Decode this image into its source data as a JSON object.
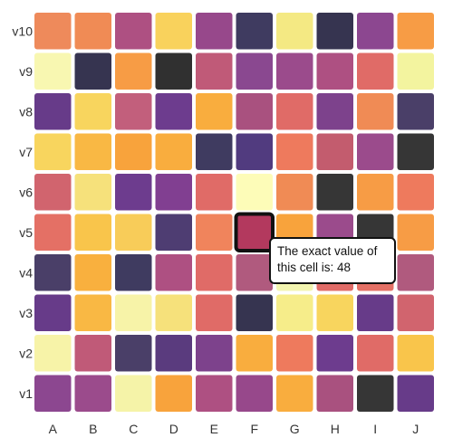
{
  "chart_data": {
    "type": "heatmap",
    "title": "",
    "xlabel": "",
    "ylabel": "",
    "columns": [
      "A",
      "B",
      "C",
      "D",
      "E",
      "F",
      "G",
      "H",
      "I",
      "J"
    ],
    "rows": [
      "v10",
      "v9",
      "v8",
      "v7",
      "v6",
      "v5",
      "v4",
      "v3",
      "v2",
      "v1"
    ],
    "cell_colors": [
      [
        "#ee8a5b",
        "#f08b55",
        "#ae5082",
        "#f9d25c",
        "#97488b",
        "#3f3b60",
        "#f4e983",
        "#363450",
        "#8c4790",
        "#f79c45"
      ],
      [
        "#f8f7b1",
        "#363450",
        "#f79c45",
        "#303030",
        "#c05a78",
        "#8a4890",
        "#9b4b8c",
        "#ae5082",
        "#e06b67",
        "#f3f49f"
      ],
      [
        "#673b89",
        "#f8d55e",
        "#c25f7c",
        "#6d3c8e",
        "#f9ad3e",
        "#a9517f",
        "#e06b67",
        "#7d428c",
        "#f08b55",
        "#4a3f68"
      ],
      [
        "#f8d55e",
        "#f9b844",
        "#f8a33c",
        "#f9ad3e",
        "#3f3b60",
        "#513b7f",
        "#ee7a5d",
        "#c35c6e",
        "#9b4b8c",
        "#363636"
      ],
      [
        "#d1646e",
        "#f6e17b",
        "#6d3c8e",
        "#813f91",
        "#e06b67",
        "#fdfcb8",
        "#f08b55",
        "#363636",
        "#f79c45",
        "#ee7a5d"
      ],
      [
        "#e47065",
        "#f9c54b",
        "#f8cc59",
        "#4e3d72",
        "#f0845c",
        "#b3395e",
        "#f8a33c",
        "#9b4b8c",
        "#363636",
        "#f79c45"
      ],
      [
        "#4a3f68",
        "#f9b03e",
        "#3f3b60",
        "#ae5082",
        "#e06b67",
        "#b05a7e",
        "#f3f5b0",
        "#e06b67",
        "#e47065",
        "#b05a7e"
      ],
      [
        "#673b89",
        "#f9b844",
        "#f7f3a8",
        "#f6e17b",
        "#e06b67",
        "#363450",
        "#f6ed8a",
        "#f8d55e",
        "#673b89",
        "#d1646e"
      ],
      [
        "#f7f3a8",
        "#c05a78",
        "#4a3f68",
        "#5a3b7e",
        "#7d428c",
        "#f9ad3e",
        "#ee7a5d",
        "#6d3c8e",
        "#e06b67",
        "#f9c54b"
      ],
      [
        "#8c4790",
        "#9b4b8c",
        "#f5f3a8",
        "#f8a33c",
        "#ae5082",
        "#97488b",
        "#f9ad3e",
        "#a9517f",
        "#363636",
        "#673b89"
      ]
    ],
    "highlight": {
      "row": "v5",
      "column": "F",
      "value": 48
    },
    "grid": false,
    "legend": "none"
  },
  "tooltip": {
    "line1": "The exact value of",
    "line2": "this cell is: 48"
  }
}
